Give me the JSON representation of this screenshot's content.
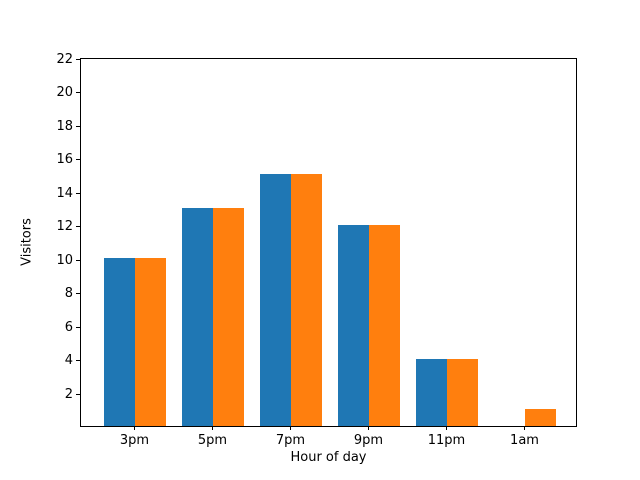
{
  "figure": {
    "background": "#ffffff",
    "axis_color": "#000000"
  },
  "chart_data": {
    "type": "bar",
    "title": "",
    "xlabel": "Hour of day",
    "ylabel": "Visitors",
    "categories": [
      "3pm",
      "5pm",
      "7pm",
      "9pm",
      "11pm",
      "1am"
    ],
    "series": [
      {
        "name": "series-blue",
        "color": "#1f77b4",
        "values": [
          10,
          13,
          15,
          12,
          4,
          0
        ]
      },
      {
        "name": "series-orange",
        "color": "#ff7f0e",
        "values": [
          10,
          13,
          15,
          12,
          4,
          1
        ]
      }
    ],
    "ylim": [
      0,
      22
    ],
    "yticks": [
      2,
      4,
      6,
      8,
      10,
      12,
      14,
      16,
      18,
      20,
      22
    ],
    "grid": false,
    "legend": null
  }
}
